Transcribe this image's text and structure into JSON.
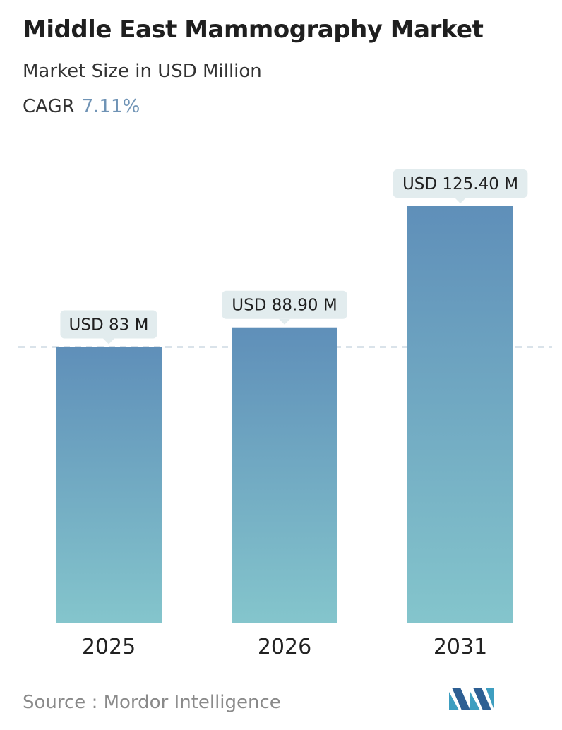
{
  "header": {
    "title": "Middle East Mammography Market",
    "subtitle": "Market Size in USD Million",
    "cagr_label": "CAGR",
    "cagr_value": "7.11%"
  },
  "chart_data": {
    "type": "bar",
    "categories": [
      "2025",
      "2026",
      "2031"
    ],
    "values": [
      83,
      88.9,
      125.4
    ],
    "data_labels": [
      "USD 83 M",
      "USD 88.90 M",
      "USD 125.40 M"
    ],
    "unit": "USD Million",
    "reference_line": 83,
    "grid": false,
    "legend": "none",
    "colors": {
      "bar_top": "#5f8fb9",
      "bar_bottom": "#84c5cc",
      "label_bg": "#e2ecee",
      "reference_line": "#6d90ad"
    }
  },
  "footer": {
    "source": "Source :  Mordor Intelligence",
    "logo_icon": "mordor-intelligence-logo-icon"
  }
}
